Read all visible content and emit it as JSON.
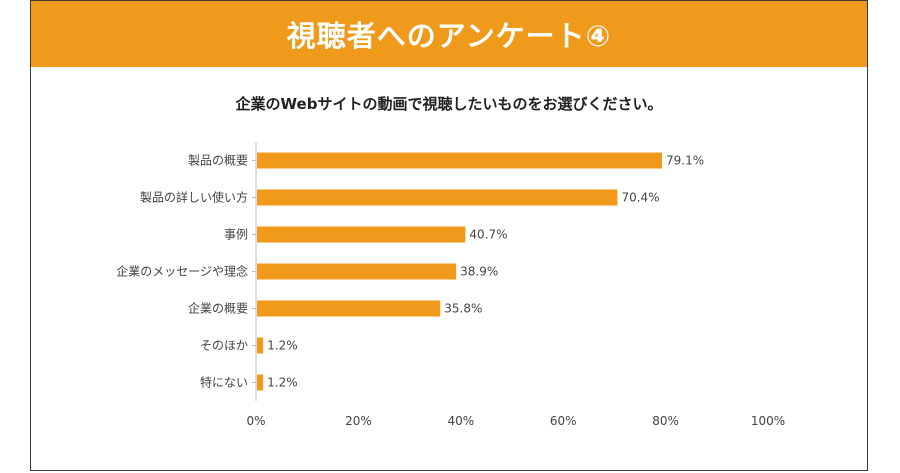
{
  "header": {
    "title": "視聴者へのアンケート④"
  },
  "colors": {
    "accent": "#ef9a1b",
    "bar": "#ef9a1b",
    "axis": "#bbbbbb"
  },
  "chart_data": {
    "type": "bar",
    "orientation": "horizontal",
    "title": "企業のWebサイトの動画で視聴したいものをお選びください。",
    "categories": [
      "製品の概要",
      "製品の詳しい使い方",
      "事例",
      "企業のメッセージや理念",
      "企業の概要",
      "そのほか",
      "特にない"
    ],
    "values": [
      79.1,
      70.4,
      40.7,
      38.9,
      35.8,
      1.2,
      1.2
    ],
    "value_labels": [
      "79.1%",
      "70.4%",
      "40.7%",
      "38.9%",
      "35.8%",
      "1.2%",
      "1.2%"
    ],
    "xlim": [
      0,
      100
    ],
    "xticks": [
      0,
      20,
      40,
      60,
      80,
      100
    ],
    "xtick_labels": [
      "0%",
      "20%",
      "40%",
      "60%",
      "80%",
      "100%"
    ],
    "grid": false,
    "legend": "none"
  }
}
